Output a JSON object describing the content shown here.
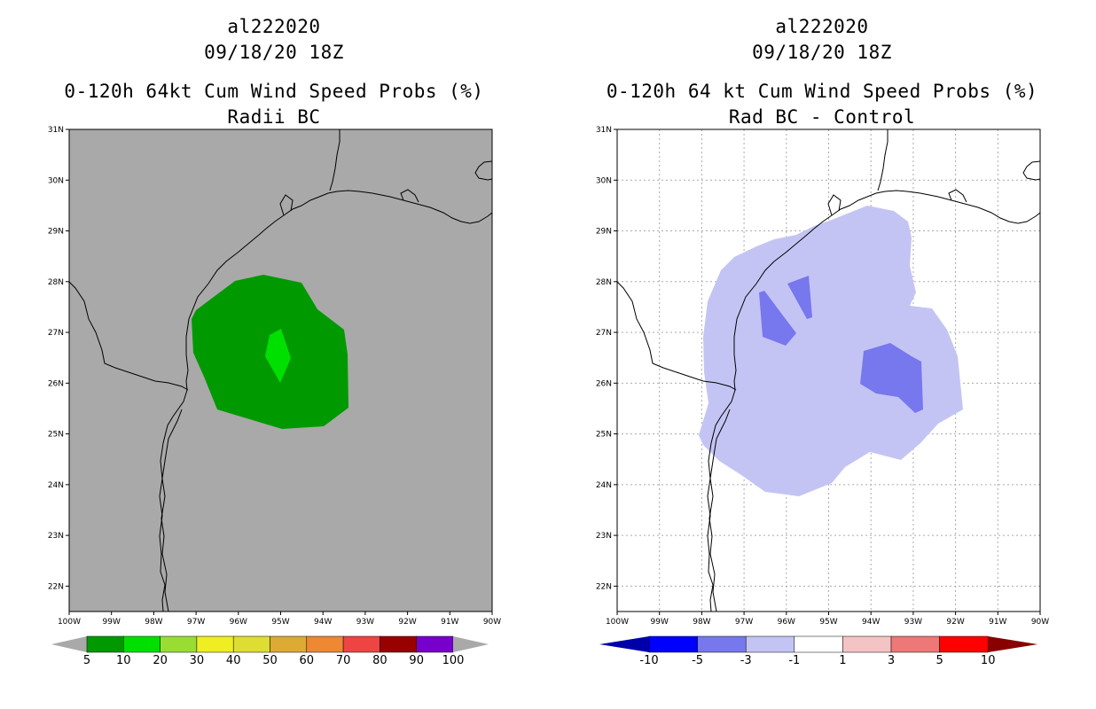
{
  "left_panel": {
    "storm_id": "al222020",
    "datetime": "09/18/20 18Z",
    "title": "0-120h 64kt Cum Wind Speed Probs (%)",
    "subtitle": "Radii BC",
    "background_color": "#a9a9a9",
    "colorbar": {
      "labels": [
        "5",
        "10",
        "20",
        "30",
        "40",
        "50",
        "60",
        "70",
        "80",
        "90",
        "100"
      ],
      "colors": [
        "#009900",
        "#00e000",
        "#99dd33",
        "#eeee22",
        "#dddd33",
        "#ddaa33",
        "#ee8833",
        "#ee4444",
        "#990000",
        "#7700cc"
      ]
    }
  },
  "right_panel": {
    "storm_id": "al222020",
    "datetime": "09/18/20 18Z",
    "title": "0-120h 64 kt Cum Wind Speed Probs (%)",
    "subtitle": "Rad BC - Control",
    "background_color": "#ffffff",
    "colorbar": {
      "labels": [
        "-10",
        "-5",
        "-3",
        "-1",
        "1",
        "3",
        "5",
        "10"
      ],
      "colors": [
        "#0000aa",
        "#0000ff",
        "#7777ee",
        "#c4c4f4",
        "#ffffff",
        "#f4c4c4",
        "#ee7777",
        "#ff0000",
        "#880000"
      ]
    }
  },
  "map": {
    "lat_labels": [
      "31N",
      "30N",
      "29N",
      "28N",
      "27N",
      "26N",
      "25N",
      "24N",
      "23N",
      "22N"
    ],
    "lon_labels": [
      "100W",
      "99W",
      "98W",
      "97W",
      "96W",
      "95W",
      "94W",
      "93W",
      "92W",
      "91W",
      "90W"
    ],
    "lat_range": [
      21.5,
      31
    ],
    "lon_range": [
      -100,
      -90
    ]
  },
  "colors": {
    "prob_5_10": "#009900",
    "prob_10_20": "#00e000",
    "diff_m3_m1": "#c4c4f4",
    "diff_m5_m3": "#7777ee",
    "coast": "#000000"
  }
}
